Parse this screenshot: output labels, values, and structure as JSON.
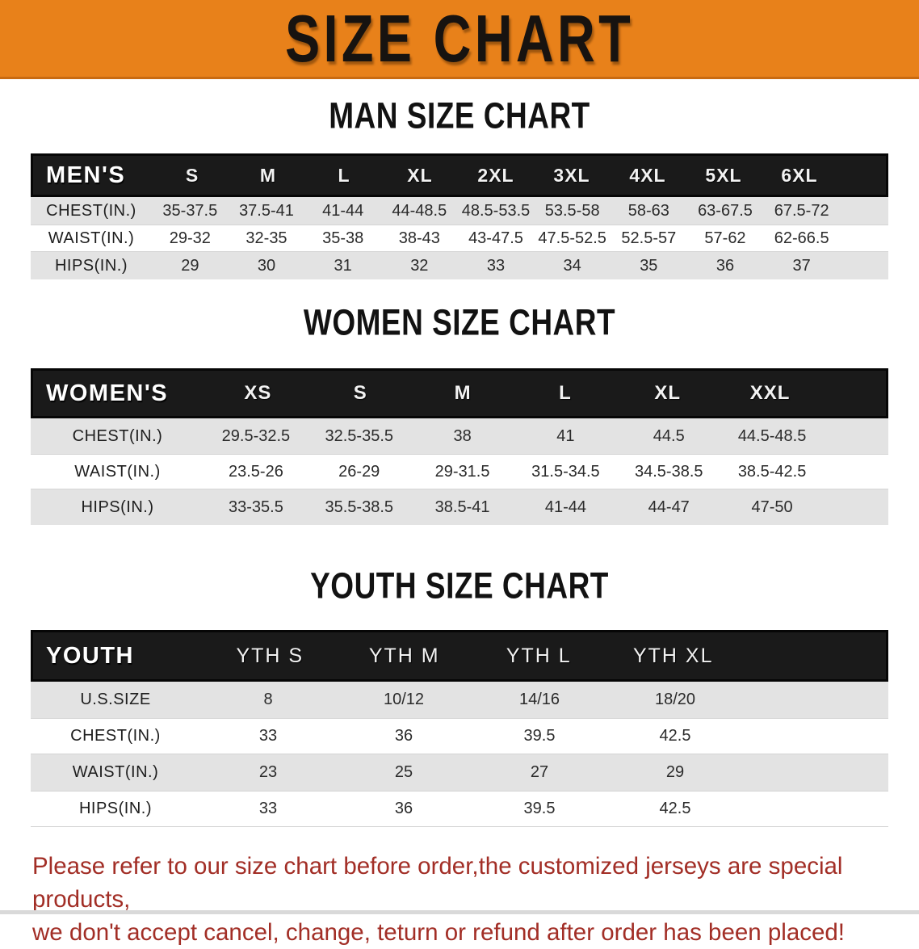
{
  "banner": {
    "title": "SIZE CHART"
  },
  "sections": [
    {
      "title": "MAN SIZE CHART",
      "table": {
        "group_label": "MEN'S",
        "sizes": [
          "S",
          "M",
          "L",
          "XL",
          "2XL",
          "3XL",
          "4XL",
          "5XL",
          "6XL"
        ],
        "rows": [
          {
            "label": "CHEST(IN.)",
            "values": [
              "35-37.5",
              "37.5-41",
              "41-44",
              "44-48.5",
              "48.5-53.5",
              "53.5-58",
              "58-63",
              "63-67.5",
              "67.5-72"
            ]
          },
          {
            "label": "WAIST(IN.)",
            "values": [
              "29-32",
              "32-35",
              "35-38",
              "38-43",
              "43-47.5",
              "47.5-52.5",
              "52.5-57",
              "57-62",
              "62-66.5"
            ]
          },
          {
            "label": "HIPS(IN.)",
            "values": [
              "29",
              "30",
              "31",
              "32",
              "33",
              "34",
              "35",
              "36",
              "37"
            ]
          }
        ]
      }
    },
    {
      "title": "WOMEN SIZE CHART",
      "table": {
        "group_label": "WOMEN'S",
        "sizes": [
          "XS",
          "S",
          "M",
          "L",
          "XL",
          "XXL"
        ],
        "rows": [
          {
            "label": "CHEST(IN.)",
            "values": [
              "29.5-32.5",
              "32.5-35.5",
              "38",
              "41",
              "44.5",
              "44.5-48.5"
            ]
          },
          {
            "label": "WAIST(IN.)",
            "values": [
              "23.5-26",
              "26-29",
              "29-31.5",
              "31.5-34.5",
              "34.5-38.5",
              "38.5-42.5"
            ]
          },
          {
            "label": "HIPS(IN.)",
            "values": [
              "33-35.5",
              "35.5-38.5",
              "38.5-41",
              "41-44",
              "44-47",
              "47-50"
            ]
          }
        ]
      }
    },
    {
      "title": "YOUTH SIZE CHART",
      "table": {
        "group_label": "YOUTH",
        "sizes": [
          "YTH S",
          "YTH M",
          "YTH L",
          "YTH XL"
        ],
        "rows": [
          {
            "label": "U.S.SIZE",
            "values": [
              "8",
              "10/12",
              "14/16",
              "18/20"
            ]
          },
          {
            "label": "CHEST(IN.)",
            "values": [
              "33",
              "36",
              "39.5",
              "42.5"
            ]
          },
          {
            "label": "WAIST(IN.)",
            "values": [
              "23",
              "25",
              "27",
              "29"
            ]
          },
          {
            "label": "HIPS(IN.)",
            "values": [
              "33",
              "36",
              "39.5",
              "42.5"
            ]
          }
        ]
      }
    }
  ],
  "footer": {
    "line1": "Please refer to our size chart before order,the customized jerseys are special products,",
    "line2": "we don't accept cancel, change, teturn or refund after order has been placed!"
  },
  "colors": {
    "banner_orange": "#e8811a",
    "header_black": "#1a1a1a",
    "row_gray": "#e3e3e3",
    "note_red": "#a22e26"
  }
}
